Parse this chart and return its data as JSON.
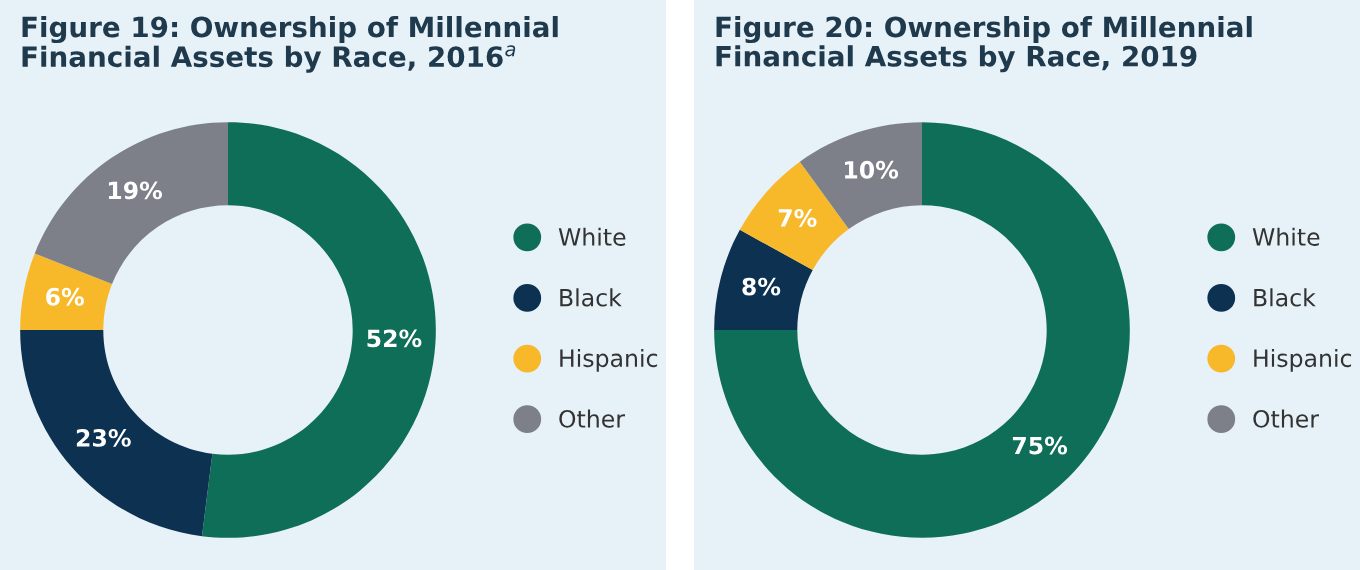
{
  "chart_data": [
    {
      "type": "donut",
      "title": "Figure 19: Ownership of Millennial\nFinancial Assets by Race, 2016$^{a}$",
      "categories": [
        "White",
        "Black",
        "Hispanic",
        "Other"
      ],
      "values": [
        52,
        23,
        6,
        19
      ],
      "value_labels": [
        "52%",
        "23%",
        "6%",
        "19%"
      ],
      "colors": [
        "#0e6e58",
        "#0d3150",
        "#f7b82a",
        "#7d8088"
      ],
      "legend": "right"
    },
    {
      "type": "donut",
      "title": "Figure 20: Ownership of Millennial\nFinancial Assets by Race, 2019",
      "categories": [
        "White",
        "Black",
        "Hispanic",
        "Other"
      ],
      "values": [
        75,
        8,
        7,
        10
      ],
      "value_labels": [
        "75%",
        "8%",
        "7%",
        "10%"
      ],
      "colors": [
        "#0e6e58",
        "#0d3150",
        "#f7b82a",
        "#7d8088"
      ],
      "legend": "right"
    }
  ]
}
